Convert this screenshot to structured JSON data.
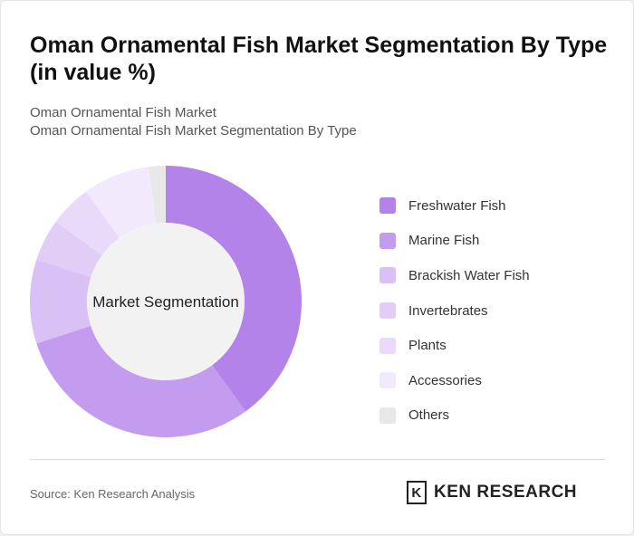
{
  "title": "Oman Ornamental Fish Market Segmentation By Type (in value %)",
  "subtitle1": "Oman Ornamental Fish Market",
  "subtitle2": "Oman Ornamental Fish Market Segmentation By Type",
  "source": "Source: Ken Research Analysis",
  "logo_text": "KEN RESEARCH",
  "chart_data": {
    "type": "pie",
    "donut": true,
    "center_label": "Market Segmentation",
    "legend_position": "right",
    "categories": [
      "Freshwater Fish",
      "Marine Fish",
      "Brackish Water Fish",
      "Invertebrates",
      "Plants",
      "Accessories",
      "Others"
    ],
    "values": [
      40,
      30,
      10,
      5,
      5,
      8,
      2
    ],
    "colors": [
      "#b383ea",
      "#c49cef",
      "#d9c0f5",
      "#e2cdf7",
      "#e9dafa",
      "#f2eafc",
      "#e8e8e8"
    ]
  }
}
